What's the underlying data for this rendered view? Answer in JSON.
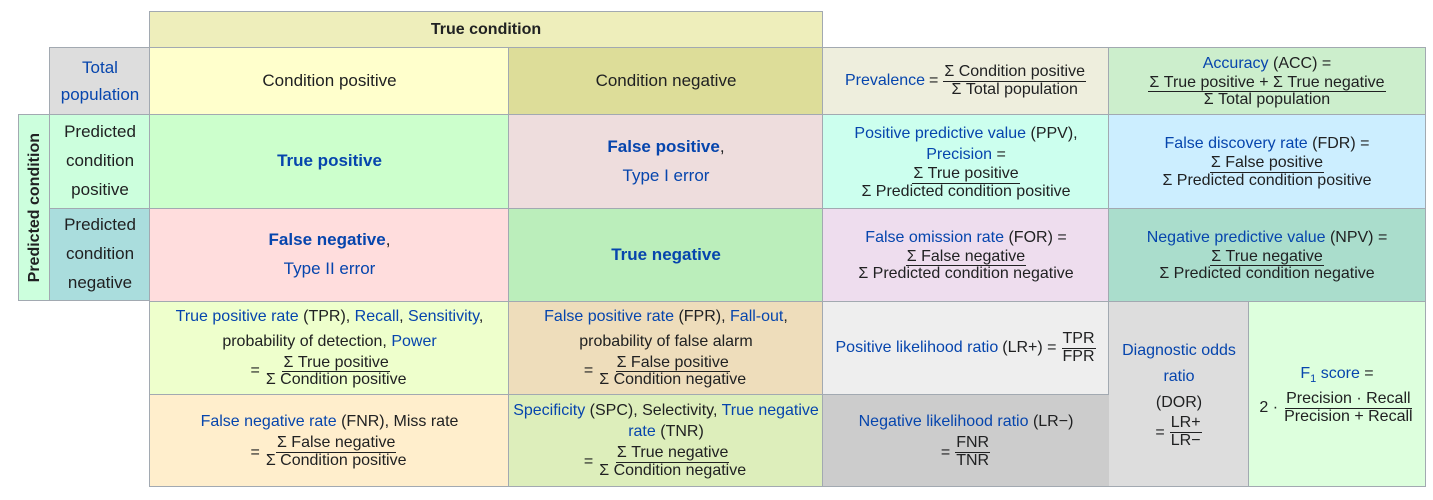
{
  "header": {
    "true_condition": "True condition"
  },
  "left": {
    "predicted_condition": "Predicted condition"
  },
  "total_population": "Total population",
  "condition_positive": "Condition positive",
  "condition_negative": "Condition negative",
  "predicted_condition_positive": "Predicted condition positive",
  "predicted_condition_negative": "Predicted condition negative",
  "true_positive": "True positive",
  "false_positive": "False positive",
  "type_i_error": "Type I error",
  "false_negative": "False negative",
  "type_ii_error": "Type II error",
  "true_negative": "True negative",
  "comma": ",",
  "equals": "=",
  "prevalence": {
    "name": "Prevalence",
    "num": "Σ Condition positive",
    "den": "Σ Total population"
  },
  "accuracy": {
    "name": "Accuracy",
    "abbr": "(ACC) =",
    "num": "Σ True positive + Σ True negative",
    "den": "Σ Total population"
  },
  "ppv": {
    "name": "Positive predictive value",
    "abbr": "(PPV),",
    "alt": "Precision",
    "eq": "=",
    "num": "Σ True positive",
    "den": "Σ Predicted condition positive"
  },
  "fdr": {
    "name": "False discovery rate",
    "abbr": "(FDR) =",
    "num": "Σ False positive",
    "den": "Σ Predicted condition positive"
  },
  "for": {
    "name": "False omission rate",
    "abbr": "(FOR) =",
    "num": "Σ False negative",
    "den": "Σ Predicted condition negative"
  },
  "npv": {
    "name": "Negative predictive value",
    "abbr": "(NPV) =",
    "num": "Σ True negative",
    "den": "Σ Predicted condition negative"
  },
  "tpr": {
    "name": "True positive rate",
    "abbr": "(TPR),",
    "recall": "Recall",
    "sensitivity": "Sensitivity",
    "desc": "probability of detection,",
    "power": "Power",
    "num": "Σ True positive",
    "den": "Σ Condition positive"
  },
  "fpr": {
    "name": "False positive rate",
    "abbr": "(FPR),",
    "fallout": "Fall-out",
    "desc": "probability of false alarm",
    "num": "Σ False positive",
    "den": "Σ Condition negative"
  },
  "fnr": {
    "name": "False negative rate",
    "abbr": "(FNR), Miss rate",
    "num": "Σ False negative",
    "den": "Σ Condition positive"
  },
  "spc": {
    "name": "Specificity",
    "abbr": "(SPC), Selectivity,",
    "alt": "True negative rate",
    "alt_abbr": "(TNR)",
    "num": "Σ True negative",
    "den": "Σ Condition negative"
  },
  "lrp": {
    "name": "Positive likelihood ratio",
    "abbr": "(LR+) =",
    "num": "TPR",
    "den": "FPR"
  },
  "lrn": {
    "name": "Negative likelihood ratio",
    "abbr": "(LR−)",
    "num": "FNR",
    "den": "TNR"
  },
  "dor": {
    "name": "Diagnostic odds ratio",
    "abbr": "(DOR)",
    "num": "LR+",
    "den": "LR−"
  },
  "f1": {
    "name": "F",
    "sub": "1",
    "name2": "score",
    "eq": "=",
    "prefix": "2 ·",
    "num": "Precision · Recall",
    "den": "Precision + Recall"
  },
  "colors": {
    "true_condition": "#eeeebb",
    "total_pop": "#dddddd",
    "cond_pos": "#ffffcc",
    "cond_neg": "#dddd99",
    "pred_pos": "#ccffdd",
    "pred_neg": "#aadddd",
    "tp": "#ccffcc",
    "fp": "#eedddd",
    "fn": "#ffdddd",
    "tn": "#bbeebb",
    "prevalence": "#eeeedd",
    "accuracy": "#cceecc",
    "ppv": "#ccffee",
    "fdr": "#cceeff",
    "for": "#eeddee",
    "npv": "#aaddcc",
    "tpr": "#eeffcc",
    "fpr": "#eeddbb",
    "fnr": "#ffeecc",
    "spc": "#ddeebb",
    "lrp": "#eeeeee",
    "lrn": "#cccccc",
    "dor": "#dddddd",
    "f1": "#ddffdd",
    "link": "#0645ad",
    "text": "#202122",
    "border": "#a2a9b1"
  }
}
